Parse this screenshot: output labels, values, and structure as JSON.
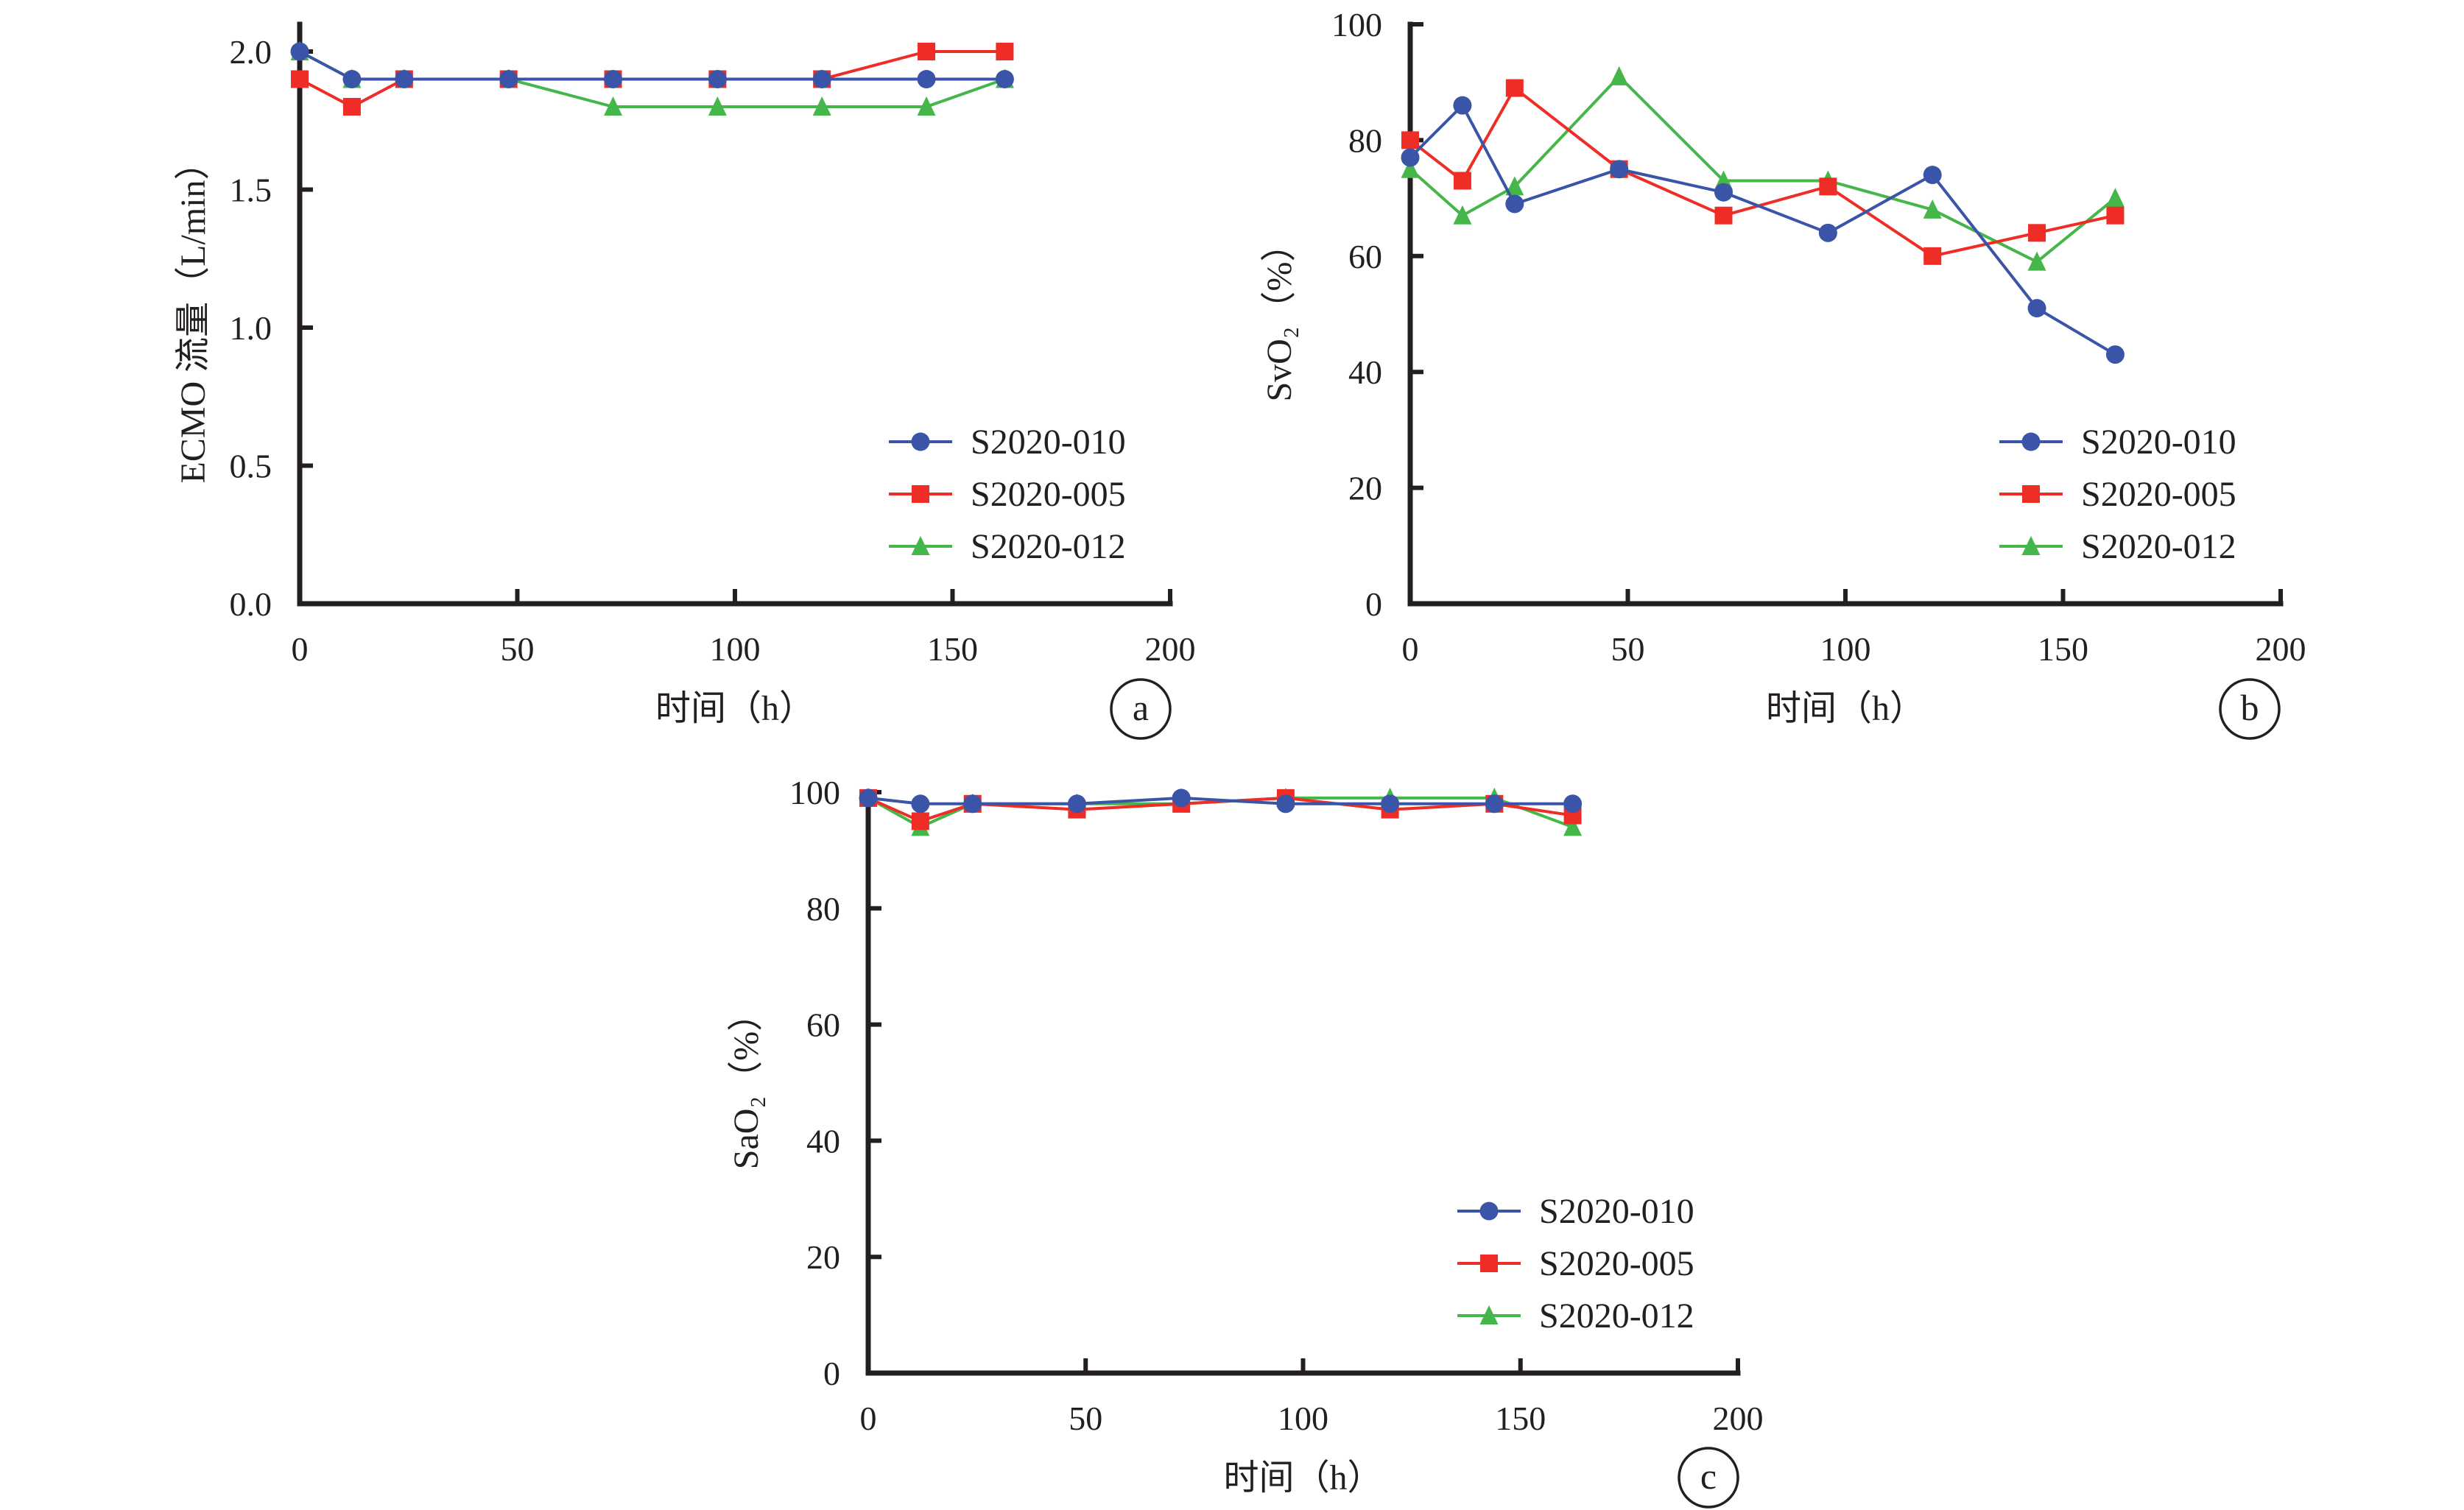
{
  "chart_data": [
    {
      "id": "a",
      "type": "line",
      "panel_label": "a",
      "title": "",
      "xlabel": "时间（h）",
      "ylabel": "ECMO 流量（L/min）",
      "xlim": [
        0,
        200
      ],
      "ylim": [
        0,
        2.0
      ],
      "x_ticks": [
        0,
        50,
        100,
        150,
        200
      ],
      "x_tick_labels": [
        "0",
        "50",
        "100",
        "150",
        "200"
      ],
      "y_ticks": [
        0,
        0.5,
        1.0,
        1.5,
        2.0
      ],
      "y_tick_labels": [
        "0.0",
        "0.5",
        "1.0",
        "1.5",
        "2.0"
      ],
      "grid": false,
      "legend_position": "bottom-right",
      "x": [
        0,
        12,
        24,
        48,
        72,
        96,
        120,
        144,
        162
      ],
      "series": [
        {
          "name": "S2020-010",
          "color": "#3a54a8",
          "marker": "circle",
          "values": [
            2.0,
            1.9,
            1.9,
            1.9,
            1.9,
            1.9,
            1.9,
            1.9,
            1.9
          ]
        },
        {
          "name": "S2020-005",
          "color": "#ee2d27",
          "marker": "square",
          "values": [
            1.9,
            1.8,
            1.9,
            1.9,
            1.9,
            1.9,
            1.9,
            2.0,
            2.0
          ]
        },
        {
          "name": "S2020-012",
          "color": "#45b649",
          "marker": "triangle",
          "values": [
            2.0,
            1.9,
            1.9,
            1.9,
            1.8,
            1.8,
            1.8,
            1.8,
            1.9
          ]
        }
      ]
    },
    {
      "id": "b",
      "type": "line",
      "panel_label": "b",
      "title": "",
      "xlabel": "时间（h）",
      "ylabel": "SvO₂（%）",
      "xlim": [
        0,
        200
      ],
      "ylim": [
        0,
        100
      ],
      "x_ticks": [
        0,
        50,
        100,
        150,
        200
      ],
      "x_tick_labels": [
        "0",
        "50",
        "100",
        "150",
        "200"
      ],
      "y_ticks": [
        0,
        20,
        40,
        60,
        80,
        100
      ],
      "y_tick_labels": [
        "0",
        "20",
        "40",
        "60",
        "80",
        "100"
      ],
      "grid": false,
      "legend_position": "bottom-right",
      "x": [
        0,
        12,
        24,
        48,
        72,
        96,
        120,
        144,
        162
      ],
      "series": [
        {
          "name": "S2020-010",
          "color": "#3a54a8",
          "marker": "circle",
          "values": [
            77,
            86,
            69,
            75,
            71,
            64,
            74,
            51,
            43
          ]
        },
        {
          "name": "S2020-005",
          "color": "#ee2d27",
          "marker": "square",
          "values": [
            80,
            73,
            89,
            75,
            67,
            72,
            60,
            64,
            67
          ]
        },
        {
          "name": "S2020-012",
          "color": "#45b649",
          "marker": "triangle",
          "values": [
            75,
            67,
            72,
            91,
            73,
            73,
            68,
            59,
            70
          ]
        }
      ]
    },
    {
      "id": "c",
      "type": "line",
      "panel_label": "c",
      "title": "",
      "xlabel": "时间（h）",
      "ylabel": "SaO₂（%）",
      "xlim": [
        0,
        200
      ],
      "ylim": [
        0,
        100
      ],
      "x_ticks": [
        0,
        50,
        100,
        150,
        200
      ],
      "x_tick_labels": [
        "0",
        "50",
        "100",
        "150",
        "200"
      ],
      "y_ticks": [
        0,
        20,
        40,
        60,
        80,
        100
      ],
      "y_tick_labels": [
        "0",
        "20",
        "40",
        "60",
        "80",
        "100"
      ],
      "grid": false,
      "legend_position": "bottom-right",
      "x": [
        0,
        12,
        24,
        48,
        72,
        96,
        120,
        144,
        162
      ],
      "series": [
        {
          "name": "S2020-010",
          "color": "#3a54a8",
          "marker": "circle",
          "values": [
            99,
            98,
            98,
            98,
            99,
            98,
            98,
            98,
            98
          ]
        },
        {
          "name": "S2020-005",
          "color": "#ee2d27",
          "marker": "square",
          "values": [
            99,
            95,
            98,
            97,
            98,
            99,
            97,
            98,
            96
          ]
        },
        {
          "name": "S2020-012",
          "color": "#45b649",
          "marker": "triangle",
          "values": [
            99,
            94,
            98,
            98,
            98,
            99,
            99,
            99,
            94
          ]
        }
      ]
    }
  ]
}
